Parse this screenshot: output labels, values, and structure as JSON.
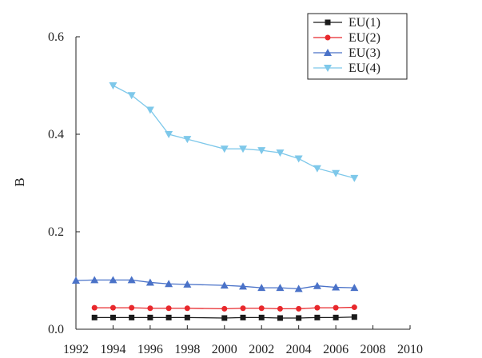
{
  "chart_data": {
    "type": "line",
    "ylabel": "B",
    "xlim": [
      1992,
      2010
    ],
    "ylim": [
      0.0,
      0.6
    ],
    "x_ticks": [
      "1992",
      "1994",
      "1996",
      "1998",
      "2000",
      "2002",
      "2004",
      "2006",
      "2008",
      "2010"
    ],
    "y_ticks": [
      "0.0",
      "0.2",
      "0.4",
      "0.6"
    ],
    "legend_position": "top-right",
    "series": [
      {
        "name": "EU(1)",
        "color": "#1a1a1a",
        "marker": "square",
        "x": [
          1993,
          1994,
          1995,
          1996,
          1997,
          1998,
          2000,
          2001,
          2002,
          2003,
          2004,
          2005,
          2006,
          2007
        ],
        "values": [
          0.024,
          0.024,
          0.024,
          0.024,
          0.024,
          0.024,
          0.023,
          0.024,
          0.024,
          0.023,
          0.023,
          0.024,
          0.024,
          0.025
        ]
      },
      {
        "name": "EU(2)",
        "color": "#e8282c",
        "marker": "circle",
        "x": [
          1993,
          1994,
          1995,
          1996,
          1997,
          1998,
          2000,
          2001,
          2002,
          2003,
          2004,
          2005,
          2006,
          2007
        ],
        "values": [
          0.044,
          0.044,
          0.044,
          0.043,
          0.043,
          0.043,
          0.042,
          0.043,
          0.043,
          0.042,
          0.042,
          0.044,
          0.044,
          0.045
        ]
      },
      {
        "name": "EU(3)",
        "color": "#4a72c8",
        "marker": "triangle-up",
        "x": [
          1992,
          1993,
          1994,
          1995,
          1996,
          1997,
          1998,
          2000,
          2001,
          2002,
          2003,
          2004,
          2005,
          2006,
          2007
        ],
        "values": [
          0.1,
          0.101,
          0.101,
          0.101,
          0.096,
          0.093,
          0.092,
          0.09,
          0.088,
          0.085,
          0.085,
          0.083,
          0.089,
          0.086,
          0.085
        ]
      },
      {
        "name": "EU(4)",
        "color": "#7ec8ea",
        "marker": "triangle-down",
        "x": [
          1994,
          1995,
          1996,
          1997,
          1998,
          2000,
          2001,
          2002,
          2003,
          2004,
          2005,
          2006,
          2007
        ],
        "values": [
          0.5,
          0.48,
          0.45,
          0.4,
          0.39,
          0.37,
          0.37,
          0.367,
          0.362,
          0.35,
          0.33,
          0.32,
          0.31
        ]
      }
    ]
  }
}
